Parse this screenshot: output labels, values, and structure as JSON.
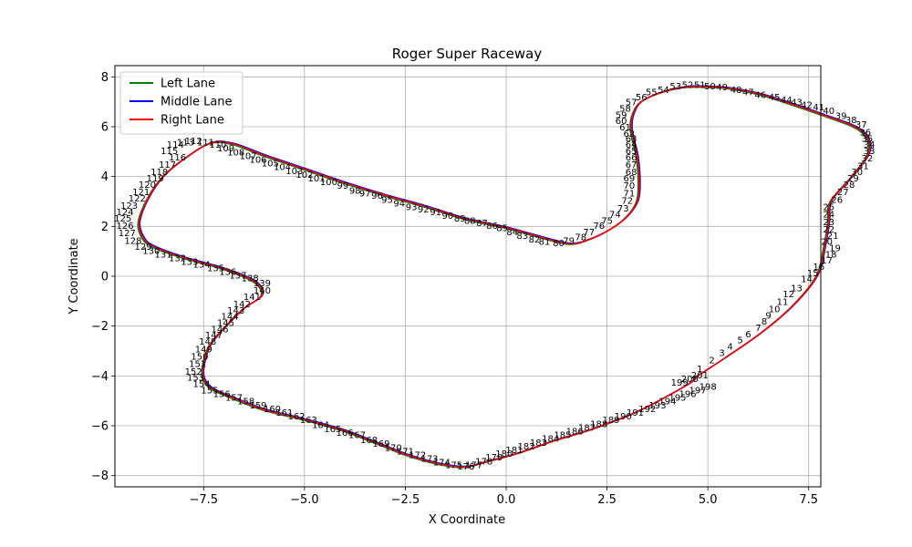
{
  "chart_data": {
    "type": "line",
    "title": "Roger Super Raceway",
    "xlabel": "X Coordinate",
    "ylabel": "Y Coordinate",
    "xlim": [
      -9.7,
      7.8
    ],
    "ylim": [
      -8.45,
      8.45
    ],
    "xticks": [
      -7.5,
      -5.0,
      -2.5,
      0.0,
      2.5,
      5.0,
      7.5
    ],
    "xtick_labels": [
      "−7.5",
      "−5.0",
      "−2.5",
      "0.0",
      "2.5",
      "5.0",
      "7.5"
    ],
    "yticks": [
      -8,
      -6,
      -4,
      -2,
      0,
      2,
      4,
      6,
      8
    ],
    "ytick_labels": [
      "−8",
      "−6",
      "−4",
      "−2",
      "0",
      "2",
      "4",
      "6",
      "8"
    ],
    "grid": true,
    "legend_position": "upper-left",
    "series": [
      {
        "name": "Left Lane",
        "color": "#008000"
      },
      {
        "name": "Middle Lane",
        "color": "#0000ff"
      },
      {
        "name": "Right Lane",
        "color": "#ff0000"
      }
    ],
    "point_count": 201,
    "path": [
      [
        4.7,
        -4.05
      ],
      [
        5.5,
        -3.2
      ],
      [
        6.3,
        -2.3
      ],
      [
        7.1,
        -1.2
      ],
      [
        7.7,
        0.0
      ],
      [
        7.9,
        1.2
      ],
      [
        8.0,
        2.2
      ],
      [
        8.05,
        3.0
      ],
      [
        8.55,
        3.95
      ],
      [
        8.95,
        4.8
      ],
      [
        9.0,
        5.4
      ],
      [
        8.7,
        5.95
      ],
      [
        7.9,
        6.45
      ],
      [
        7.0,
        6.95
      ],
      [
        6.3,
        7.3
      ],
      [
        5.5,
        7.55
      ],
      [
        5.0,
        7.6
      ],
      [
        4.5,
        7.6
      ],
      [
        3.9,
        7.4
      ],
      [
        3.35,
        7.0
      ],
      [
        3.15,
        6.5
      ],
      [
        3.1,
        6.0
      ],
      [
        3.15,
        5.5
      ],
      [
        3.25,
        4.8
      ],
      [
        3.3,
        3.8
      ],
      [
        3.25,
        3.0
      ],
      [
        3.0,
        2.4
      ],
      [
        2.6,
        1.9
      ],
      [
        2.1,
        1.5
      ],
      [
        1.6,
        1.3
      ],
      [
        0.9,
        1.55
      ],
      [
        0.0,
        1.95
      ],
      [
        -1.0,
        2.3
      ],
      [
        -2.0,
        2.8
      ],
      [
        -3.0,
        3.25
      ],
      [
        -4.0,
        3.75
      ],
      [
        -5.0,
        4.3
      ],
      [
        -6.0,
        4.85
      ],
      [
        -6.75,
        5.3
      ],
      [
        -7.3,
        5.35
      ],
      [
        -7.9,
        4.8
      ],
      [
        -8.5,
        4.0
      ],
      [
        -8.9,
        3.05
      ],
      [
        -9.1,
        2.15
      ],
      [
        -9.0,
        1.55
      ],
      [
        -8.75,
        1.2
      ],
      [
        -8.0,
        0.75
      ],
      [
        -7.0,
        0.3
      ],
      [
        -6.25,
        -0.2
      ],
      [
        -6.05,
        -0.75
      ],
      [
        -6.5,
        -1.3
      ],
      [
        -7.0,
        -2.1
      ],
      [
        -7.35,
        -2.8
      ],
      [
        -7.5,
        -3.55
      ],
      [
        -7.5,
        -4.1
      ],
      [
        -7.3,
        -4.5
      ],
      [
        -6.9,
        -4.8
      ],
      [
        -6.0,
        -5.35
      ],
      [
        -5.0,
        -5.75
      ],
      [
        -4.0,
        -6.2
      ],
      [
        -3.2,
        -6.7
      ],
      [
        -2.4,
        -7.2
      ],
      [
        -1.6,
        -7.55
      ],
      [
        -1.0,
        -7.65
      ],
      [
        -0.5,
        -7.45
      ],
      [
        0.3,
        -7.1
      ],
      [
        1.2,
        -6.6
      ],
      [
        2.2,
        -6.1
      ],
      [
        3.3,
        -5.4
      ],
      [
        4.5,
        -4.35
      ],
      [
        4.7,
        -4.05
      ]
    ],
    "point_labels": [
      {
        "n": "1",
        "x": 4.8,
        "y": -3.7
      },
      {
        "n": "2",
        "x": 5.1,
        "y": -3.35
      },
      {
        "n": "3",
        "x": 5.35,
        "y": -3.05
      },
      {
        "n": "4",
        "x": 5.55,
        "y": -2.8
      },
      {
        "n": "5",
        "x": 5.8,
        "y": -2.55
      },
      {
        "n": "6",
        "x": 6.0,
        "y": -2.3
      },
      {
        "n": "7",
        "x": 6.25,
        "y": -2.05
      },
      {
        "n": "8",
        "x": 6.4,
        "y": -1.8
      },
      {
        "n": "9",
        "x": 6.5,
        "y": -1.55
      },
      {
        "n": "10",
        "x": 6.65,
        "y": -1.3
      },
      {
        "n": "11",
        "x": 6.85,
        "y": -1.0
      },
      {
        "n": "12",
        "x": 7.0,
        "y": -0.7
      },
      {
        "n": "13",
        "x": 7.2,
        "y": -0.45
      },
      {
        "n": "14",
        "x": 7.45,
        "y": -0.1
      },
      {
        "n": "15",
        "x": 7.6,
        "y": 0.15
      },
      {
        "n": "16",
        "x": 7.75,
        "y": 0.4
      },
      {
        "n": "17",
        "x": 7.95,
        "y": 0.65
      },
      {
        "n": "18",
        "x": 8.05,
        "y": 0.9
      },
      {
        "n": "19",
        "x": 8.15,
        "y": 1.15
      },
      {
        "n": "20",
        "x": 7.95,
        "y": 1.4
      },
      {
        "n": "21",
        "x": 8.1,
        "y": 1.65
      },
      {
        "n": "22",
        "x": 8.0,
        "y": 1.9
      },
      {
        "n": "23",
        "x": 8.0,
        "y": 2.2
      },
      {
        "n": "24",
        "x": 8.0,
        "y": 2.5
      },
      {
        "n": "25",
        "x": 8.0,
        "y": 2.8
      },
      {
        "n": "26",
        "x": 8.2,
        "y": 3.1
      },
      {
        "n": "27",
        "x": 8.35,
        "y": 3.4
      },
      {
        "n": "28",
        "x": 8.5,
        "y": 3.7
      },
      {
        "n": "29",
        "x": 8.6,
        "y": 3.95
      },
      {
        "n": "30",
        "x": 8.7,
        "y": 4.2
      },
      {
        "n": "31",
        "x": 8.85,
        "y": 4.45
      },
      {
        "n": "32",
        "x": 8.95,
        "y": 4.75
      },
      {
        "n": "33",
        "x": 9.0,
        "y": 5.05
      },
      {
        "n": "34",
        "x": 9.0,
        "y": 5.3
      },
      {
        "n": "35",
        "x": 8.95,
        "y": 5.55
      },
      {
        "n": "36",
        "x": 8.9,
        "y": 5.8
      },
      {
        "n": "37",
        "x": 8.8,
        "y": 6.1
      },
      {
        "n": "38",
        "x": 8.55,
        "y": 6.3
      },
      {
        "n": "39",
        "x": 8.3,
        "y": 6.45
      },
      {
        "n": "40",
        "x": 8.0,
        "y": 6.65
      },
      {
        "n": "41",
        "x": 7.75,
        "y": 6.8
      },
      {
        "n": "42",
        "x": 7.45,
        "y": 6.9
      },
      {
        "n": "43",
        "x": 7.2,
        "y": 7.0
      },
      {
        "n": "44",
        "x": 6.95,
        "y": 7.1
      },
      {
        "n": "45",
        "x": 6.65,
        "y": 7.2
      },
      {
        "n": "46",
        "x": 6.3,
        "y": 7.3
      },
      {
        "n": "47",
        "x": 6.0,
        "y": 7.4
      },
      {
        "n": "48",
        "x": 5.7,
        "y": 7.5
      },
      {
        "n": "49",
        "x": 5.35,
        "y": 7.6
      },
      {
        "n": "50",
        "x": 5.05,
        "y": 7.65
      },
      {
        "n": "51",
        "x": 4.8,
        "y": 7.7
      },
      {
        "n": "52",
        "x": 4.5,
        "y": 7.7
      },
      {
        "n": "53",
        "x": 4.2,
        "y": 7.65
      },
      {
        "n": "54",
        "x": 3.9,
        "y": 7.5
      },
      {
        "n": "55",
        "x": 3.6,
        "y": 7.4
      },
      {
        "n": "56",
        "x": 3.35,
        "y": 7.2
      },
      {
        "n": "57",
        "x": 3.1,
        "y": 7.0
      },
      {
        "n": "58",
        "x": 2.95,
        "y": 6.75
      },
      {
        "n": "59",
        "x": 2.85,
        "y": 6.5
      },
      {
        "n": "60",
        "x": 2.85,
        "y": 6.25
      },
      {
        "n": "61",
        "x": 2.95,
        "y": 6.0
      },
      {
        "n": "62",
        "x": 3.05,
        "y": 5.75
      },
      {
        "n": "63",
        "x": 3.1,
        "y": 5.55
      },
      {
        "n": "64",
        "x": 3.1,
        "y": 5.3
      },
      {
        "n": "65",
        "x": 3.1,
        "y": 5.05
      },
      {
        "n": "66",
        "x": 3.1,
        "y": 4.8
      },
      {
        "n": "67",
        "x": 3.1,
        "y": 4.5
      },
      {
        "n": "68",
        "x": 3.1,
        "y": 4.2
      },
      {
        "n": "69",
        "x": 3.05,
        "y": 3.95
      },
      {
        "n": "70",
        "x": 3.05,
        "y": 3.65
      },
      {
        "n": "71",
        "x": 3.05,
        "y": 3.35
      },
      {
        "n": "72",
        "x": 3.0,
        "y": 3.05
      },
      {
        "n": "73",
        "x": 2.9,
        "y": 2.75
      },
      {
        "n": "74",
        "x": 2.7,
        "y": 2.5
      },
      {
        "n": "75",
        "x": 2.5,
        "y": 2.25
      },
      {
        "n": "76",
        "x": 2.3,
        "y": 2.05
      },
      {
        "n": "77",
        "x": 2.05,
        "y": 1.8
      },
      {
        "n": "78",
        "x": 1.85,
        "y": 1.6
      },
      {
        "n": "79",
        "x": 1.55,
        "y": 1.45
      },
      {
        "n": "80",
        "x": 1.3,
        "y": 1.35
      },
      {
        "n": "81",
        "x": 0.95,
        "y": 1.4
      },
      {
        "n": "82",
        "x": 0.7,
        "y": 1.5
      },
      {
        "n": "83",
        "x": 0.4,
        "y": 1.65
      },
      {
        "n": "84",
        "x": 0.15,
        "y": 1.8
      },
      {
        "n": "85",
        "x": -0.1,
        "y": 1.95
      },
      {
        "n": "86",
        "x": -0.35,
        "y": 2.05
      },
      {
        "n": "87",
        "x": -0.6,
        "y": 2.15
      },
      {
        "n": "88",
        "x": -0.9,
        "y": 2.25
      },
      {
        "n": "89",
        "x": -1.15,
        "y": 2.35
      },
      {
        "n": "90",
        "x": -1.45,
        "y": 2.45
      },
      {
        "n": "91",
        "x": -1.75,
        "y": 2.6
      },
      {
        "n": "92",
        "x": -2.05,
        "y": 2.7
      },
      {
        "n": "93",
        "x": -2.35,
        "y": 2.8
      },
      {
        "n": "94",
        "x": -2.65,
        "y": 2.95
      },
      {
        "n": "95",
        "x": -2.95,
        "y": 3.1
      },
      {
        "n": "96",
        "x": -3.2,
        "y": 3.25
      },
      {
        "n": "97",
        "x": -3.5,
        "y": 3.35
      },
      {
        "n": "98",
        "x": -3.75,
        "y": 3.45
      },
      {
        "n": "99",
        "x": -4.05,
        "y": 3.65
      },
      {
        "n": "100",
        "x": -4.4,
        "y": 3.8
      },
      {
        "n": "101",
        "x": -4.7,
        "y": 3.95
      },
      {
        "n": "102",
        "x": -5.0,
        "y": 4.1
      },
      {
        "n": "103",
        "x": -5.25,
        "y": 4.25
      },
      {
        "n": "104",
        "x": -5.55,
        "y": 4.4
      },
      {
        "n": "105",
        "x": -5.85,
        "y": 4.55
      },
      {
        "n": "106",
        "x": -6.15,
        "y": 4.7
      },
      {
        "n": "107",
        "x": -6.4,
        "y": 4.85
      },
      {
        "n": "108",
        "x": -6.7,
        "y": 5.0
      },
      {
        "n": "109",
        "x": -6.95,
        "y": 5.15
      },
      {
        "n": "110",
        "x": -7.15,
        "y": 5.3
      },
      {
        "n": "111",
        "x": -7.45,
        "y": 5.4
      },
      {
        "n": "112",
        "x": -7.75,
        "y": 5.45
      },
      {
        "n": "113",
        "x": -7.95,
        "y": 5.4
      },
      {
        "n": "114",
        "x": -8.2,
        "y": 5.3
      },
      {
        "n": "115",
        "x": -8.35,
        "y": 5.05
      },
      {
        "n": "116",
        "x": -8.15,
        "y": 4.8
      },
      {
        "n": "117",
        "x": -8.4,
        "y": 4.5
      },
      {
        "n": "118",
        "x": -8.6,
        "y": 4.2
      },
      {
        "n": "119",
        "x": -8.7,
        "y": 3.95
      },
      {
        "n": "120",
        "x": -8.9,
        "y": 3.7
      },
      {
        "n": "121",
        "x": -9.05,
        "y": 3.4
      },
      {
        "n": "122",
        "x": -9.15,
        "y": 3.15
      },
      {
        "n": "123",
        "x": -9.35,
        "y": 2.85
      },
      {
        "n": "124",
        "x": -9.45,
        "y": 2.6
      },
      {
        "n": "125",
        "x": -9.5,
        "y": 2.35
      },
      {
        "n": "126",
        "x": -9.45,
        "y": 2.05
      },
      {
        "n": "127",
        "x": -9.4,
        "y": 1.75
      },
      {
        "n": "128",
        "x": -9.25,
        "y": 1.45
      },
      {
        "n": "129",
        "x": -9.0,
        "y": 1.2
      },
      {
        "n": "130",
        "x": -8.8,
        "y": 1.05
      },
      {
        "n": "131",
        "x": -8.5,
        "y": 0.9
      },
      {
        "n": "132",
        "x": -8.15,
        "y": 0.75
      },
      {
        "n": "133",
        "x": -7.85,
        "y": 0.6
      },
      {
        "n": "134",
        "x": -7.55,
        "y": 0.5
      },
      {
        "n": "135",
        "x": -7.2,
        "y": 0.35
      },
      {
        "n": "136",
        "x": -6.9,
        "y": 0.2
      },
      {
        "n": "137",
        "x": -6.65,
        "y": 0.05
      },
      {
        "n": "138",
        "x": -6.35,
        "y": -0.05
      },
      {
        "n": "139",
        "x": -6.05,
        "y": -0.25
      },
      {
        "n": "140",
        "x": -6.05,
        "y": -0.55
      },
      {
        "n": "141",
        "x": -6.3,
        "y": -0.8
      },
      {
        "n": "142",
        "x": -6.55,
        "y": -1.1
      },
      {
        "n": "143",
        "x": -6.7,
        "y": -1.35
      },
      {
        "n": "144",
        "x": -6.85,
        "y": -1.6
      },
      {
        "n": "145",
        "x": -6.95,
        "y": -1.85
      },
      {
        "n": "146",
        "x": -7.1,
        "y": -2.1
      },
      {
        "n": "147",
        "x": -7.25,
        "y": -2.35
      },
      {
        "n": "148",
        "x": -7.4,
        "y": -2.6
      },
      {
        "n": "149",
        "x": -7.5,
        "y": -2.9
      },
      {
        "n": "150",
        "x": -7.6,
        "y": -3.2
      },
      {
        "n": "151",
        "x": -7.65,
        "y": -3.5
      },
      {
        "n": "152",
        "x": -7.75,
        "y": -3.8
      },
      {
        "n": "153",
        "x": -7.7,
        "y": -4.05
      },
      {
        "n": "154",
        "x": -7.55,
        "y": -4.3
      },
      {
        "n": "155",
        "x": -7.35,
        "y": -4.55
      },
      {
        "n": "156",
        "x": -7.05,
        "y": -4.7
      },
      {
        "n": "157",
        "x": -6.75,
        "y": -4.85
      },
      {
        "n": "158",
        "x": -6.45,
        "y": -5.0
      },
      {
        "n": "159",
        "x": -6.15,
        "y": -5.15
      },
      {
        "n": "160",
        "x": -5.8,
        "y": -5.3
      },
      {
        "n": "161",
        "x": -5.5,
        "y": -5.45
      },
      {
        "n": "162",
        "x": -5.2,
        "y": -5.6
      },
      {
        "n": "163",
        "x": -4.9,
        "y": -5.75
      },
      {
        "n": "164",
        "x": -4.6,
        "y": -5.95
      },
      {
        "n": "165",
        "x": -4.3,
        "y": -6.1
      },
      {
        "n": "166",
        "x": -4.0,
        "y": -6.25
      },
      {
        "n": "167",
        "x": -3.7,
        "y": -6.35
      },
      {
        "n": "168",
        "x": -3.4,
        "y": -6.55
      },
      {
        "n": "169",
        "x": -3.1,
        "y": -6.7
      },
      {
        "n": "170",
        "x": -2.8,
        "y": -6.85
      },
      {
        "n": "171",
        "x": -2.5,
        "y": -7.0
      },
      {
        "n": "172",
        "x": -2.2,
        "y": -7.15
      },
      {
        "n": "173",
        "x": -1.9,
        "y": -7.3
      },
      {
        "n": "174",
        "x": -1.6,
        "y": -7.45
      },
      {
        "n": "175",
        "x": -1.3,
        "y": -7.55
      },
      {
        "n": "176",
        "x": -1.0,
        "y": -7.6
      },
      {
        "n": "177",
        "x": -0.8,
        "y": -7.55
      },
      {
        "n": "178",
        "x": -0.55,
        "y": -7.4
      },
      {
        "n": "179",
        "x": -0.3,
        "y": -7.25
      },
      {
        "n": "180",
        "x": -0.05,
        "y": -7.1
      },
      {
        "n": "181",
        "x": 0.2,
        "y": -6.95
      },
      {
        "n": "182",
        "x": 0.5,
        "y": -6.8
      },
      {
        "n": "183",
        "x": 0.8,
        "y": -6.65
      },
      {
        "n": "184",
        "x": 1.1,
        "y": -6.5
      },
      {
        "n": "185",
        "x": 1.4,
        "y": -6.35
      },
      {
        "n": "186",
        "x": 1.7,
        "y": -6.2
      },
      {
        "n": "187",
        "x": 2.0,
        "y": -6.05
      },
      {
        "n": "188",
        "x": 2.3,
        "y": -5.9
      },
      {
        "n": "189",
        "x": 2.6,
        "y": -5.75
      },
      {
        "n": "190",
        "x": 2.9,
        "y": -5.6
      },
      {
        "n": "191",
        "x": 3.2,
        "y": -5.45
      },
      {
        "n": "192",
        "x": 3.5,
        "y": -5.3
      },
      {
        "n": "193",
        "x": 3.75,
        "y": -5.15
      },
      {
        "n": "194",
        "x": 4.0,
        "y": -5.0
      },
      {
        "n": "195",
        "x": 4.25,
        "y": -4.85
      },
      {
        "n": "196",
        "x": 4.5,
        "y": -4.7
      },
      {
        "n": "197",
        "x": 4.75,
        "y": -4.55
      },
      {
        "n": "198",
        "x": 5.0,
        "y": -4.4
      },
      {
        "n": "199",
        "x": 4.3,
        "y": -4.25
      },
      {
        "n": "200",
        "x": 4.55,
        "y": -4.1
      },
      {
        "n": "201",
        "x": 4.8,
        "y": -3.95
      }
    ]
  }
}
